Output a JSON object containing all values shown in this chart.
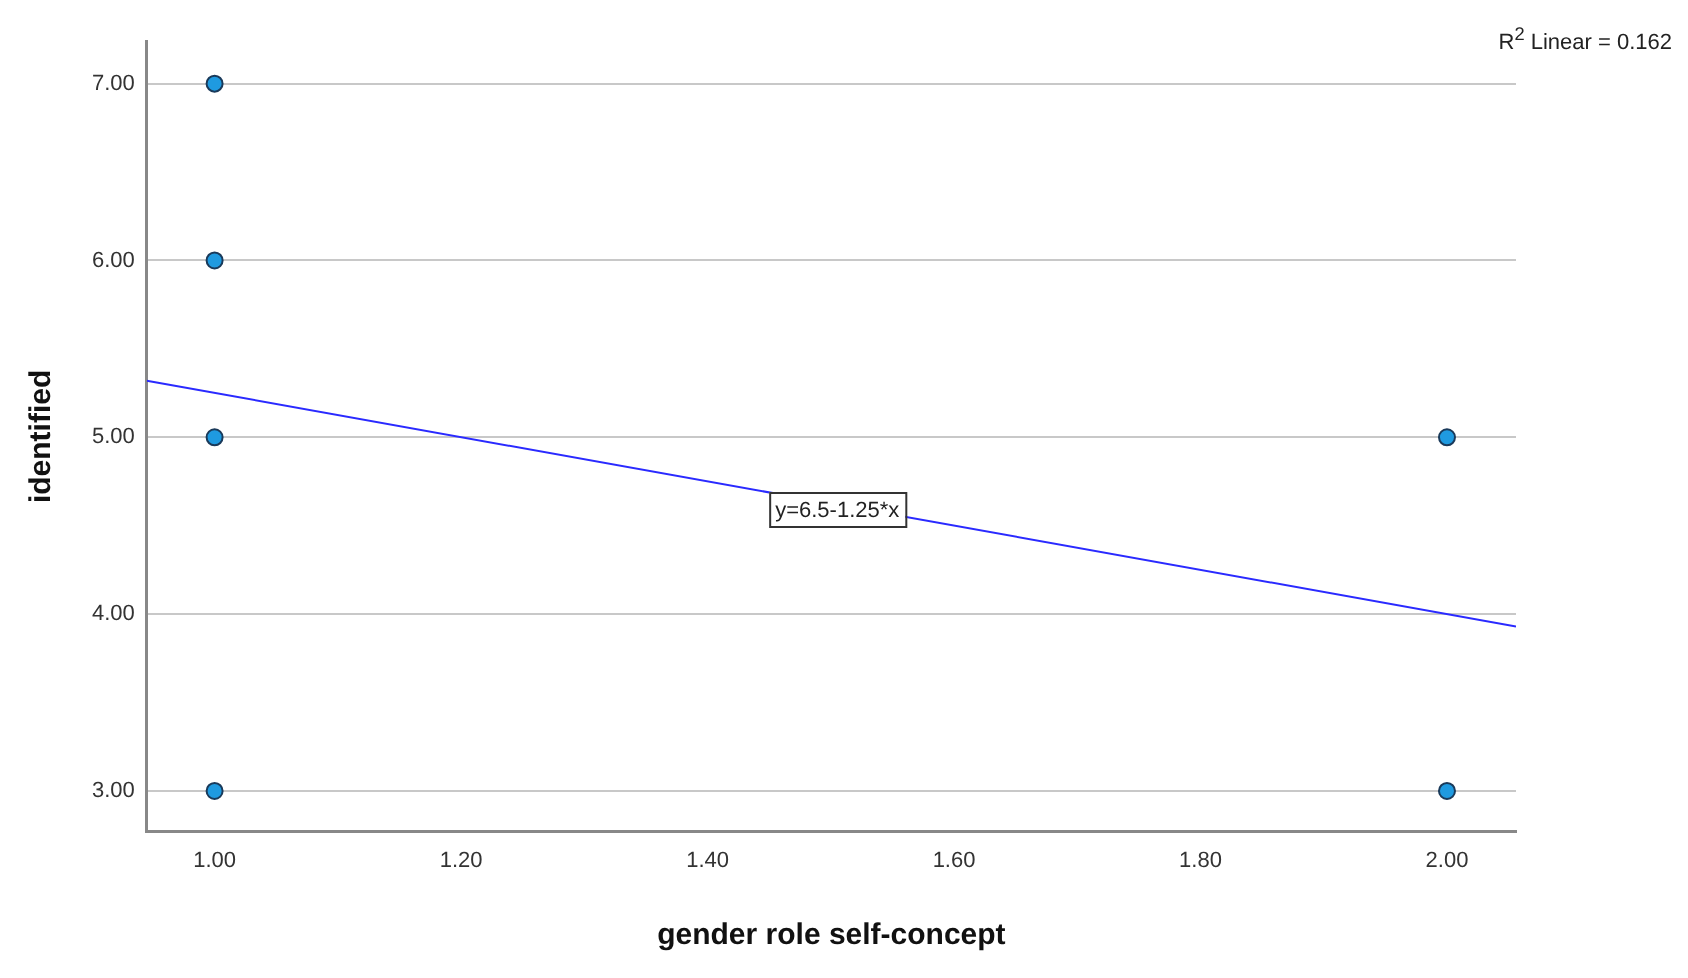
{
  "chart_data": {
    "type": "scatter",
    "xlabel": "gender role self-concept",
    "ylabel": "identified",
    "xlim": [
      0.945,
      2.056
    ],
    "xticks": [
      {
        "value": 1,
        "label": "1.00"
      },
      {
        "value": 1.2,
        "label": "1.20"
      },
      {
        "value": 1.4,
        "label": "1.40"
      },
      {
        "value": 1.6,
        "label": "1.60"
      },
      {
        "value": 1.8,
        "label": "1.80"
      },
      {
        "value": 2,
        "label": "2.00"
      }
    ],
    "ylim": [
      2.77,
      7.24
    ],
    "yticks": [
      {
        "value": 3,
        "label": "3.00"
      },
      {
        "value": 4,
        "label": "4.00"
      },
      {
        "value": 5,
        "label": "5.00"
      },
      {
        "value": 6,
        "label": "6.00"
      },
      {
        "value": 7,
        "label": "7.00"
      }
    ],
    "grid": "y",
    "series": [
      {
        "marker": "circle",
        "color": "#1f9ae0",
        "x": [
          1,
          1,
          1,
          1,
          2,
          2
        ],
        "values": [
          7,
          6,
          5,
          3,
          5,
          3
        ]
      },
      {
        "type": "line",
        "marker": "none",
        "color": "#2a2aff",
        "x": [
          0.945,
          2.056
        ],
        "values": [
          5.32,
          3.93
        ]
      }
    ],
    "annotations": [
      "R$^{2}$ Linear = 0.162",
      {
        "text": "y=6.5-1.25*x",
        "x": 1.45,
        "y": 4.69
      }
    ]
  }
}
